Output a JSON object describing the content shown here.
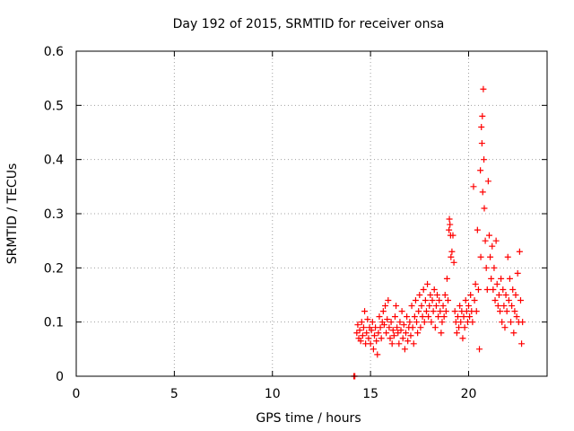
{
  "chart_data": {
    "type": "scatter",
    "title": "Day 192 of 2015, SRMTID for receiver onsa",
    "xlabel": "GPS time / hours",
    "ylabel": "SRMTID / TECUs",
    "xlim": [
      0,
      24
    ],
    "ylim": [
      0,
      0.6
    ],
    "x_ticks": [
      0,
      5,
      10,
      15,
      20
    ],
    "x_tick_labels": [
      "0",
      "5",
      "10",
      "15",
      "20"
    ],
    "y_ticks": [
      0,
      0.1,
      0.2,
      0.3,
      0.4,
      0.5,
      0.6
    ],
    "y_tick_labels": [
      "0",
      "0.1",
      "0.2",
      "0.3",
      "0.4",
      "0.5",
      "0.6"
    ],
    "grid": true,
    "marker": "plus",
    "series": [
      {
        "name": "SRMTID",
        "color": "#ff0000",
        "points": [
          [
            14.15,
            0.0
          ],
          [
            14.2,
            0.0
          ],
          [
            14.3,
            0.08
          ],
          [
            14.35,
            0.095
          ],
          [
            14.4,
            0.07
          ],
          [
            14.45,
            0.085
          ],
          [
            14.5,
            0.065
          ],
          [
            14.55,
            0.1
          ],
          [
            14.6,
            0.075
          ],
          [
            14.65,
            0.09
          ],
          [
            14.7,
            0.12
          ],
          [
            14.75,
            0.06
          ],
          [
            14.8,
            0.08
          ],
          [
            14.85,
            0.105
          ],
          [
            14.9,
            0.07
          ],
          [
            14.95,
            0.09
          ],
          [
            15.0,
            0.06
          ],
          [
            15.05,
            0.085
          ],
          [
            15.1,
            0.1
          ],
          [
            15.15,
            0.05
          ],
          [
            15.2,
            0.075
          ],
          [
            15.25,
            0.09
          ],
          [
            15.3,
            0.065
          ],
          [
            15.35,
            0.04
          ],
          [
            15.4,
            0.08
          ],
          [
            15.45,
            0.11
          ],
          [
            15.5,
            0.09
          ],
          [
            15.55,
            0.07
          ],
          [
            15.6,
            0.1
          ],
          [
            15.65,
            0.12
          ],
          [
            15.7,
            0.095
          ],
          [
            15.75,
            0.13
          ],
          [
            15.8,
            0.08
          ],
          [
            15.85,
            0.105
          ],
          [
            15.9,
            0.14
          ],
          [
            15.95,
            0.09
          ],
          [
            16.0,
            0.07
          ],
          [
            16.05,
            0.1
          ],
          [
            16.1,
            0.06
          ],
          [
            16.15,
            0.085
          ],
          [
            16.2,
            0.075
          ],
          [
            16.25,
            0.11
          ],
          [
            16.3,
            0.13
          ],
          [
            16.35,
            0.09
          ],
          [
            16.4,
            0.08
          ],
          [
            16.45,
            0.06
          ],
          [
            16.5,
            0.1
          ],
          [
            16.55,
            0.085
          ],
          [
            16.6,
            0.12
          ],
          [
            16.65,
            0.07
          ],
          [
            16.7,
            0.095
          ],
          [
            16.75,
            0.05
          ],
          [
            16.8,
            0.08
          ],
          [
            16.85,
            0.11
          ],
          [
            16.9,
            0.065
          ],
          [
            16.95,
            0.09
          ],
          [
            17.0,
            0.1
          ],
          [
            17.05,
            0.075
          ],
          [
            17.1,
            0.13
          ],
          [
            17.15,
            0.09
          ],
          [
            17.2,
            0.06
          ],
          [
            17.25,
            0.11
          ],
          [
            17.3,
            0.14
          ],
          [
            17.35,
            0.1
          ],
          [
            17.4,
            0.08
          ],
          [
            17.45,
            0.12
          ],
          [
            17.5,
            0.15
          ],
          [
            17.55,
            0.09
          ],
          [
            17.6,
            0.13
          ],
          [
            17.65,
            0.11
          ],
          [
            17.7,
            0.16
          ],
          [
            17.75,
            0.1
          ],
          [
            17.8,
            0.14
          ],
          [
            17.85,
            0.12
          ],
          [
            17.9,
            0.17
          ],
          [
            17.95,
            0.11
          ],
          [
            18.0,
            0.13
          ],
          [
            18.05,
            0.15
          ],
          [
            18.1,
            0.1
          ],
          [
            18.15,
            0.14
          ],
          [
            18.2,
            0.12
          ],
          [
            18.25,
            0.16
          ],
          [
            18.3,
            0.09
          ],
          [
            18.35,
            0.13
          ],
          [
            18.4,
            0.15
          ],
          [
            18.45,
            0.11
          ],
          [
            18.5,
            0.14
          ],
          [
            18.55,
            0.12
          ],
          [
            18.6,
            0.08
          ],
          [
            18.65,
            0.1
          ],
          [
            18.7,
            0.13
          ],
          [
            18.75,
            0.11
          ],
          [
            18.8,
            0.15
          ],
          [
            18.85,
            0.12
          ],
          [
            18.9,
            0.18
          ],
          [
            18.95,
            0.14
          ],
          [
            19.0,
            0.27
          ],
          [
            19.02,
            0.29
          ],
          [
            19.05,
            0.28
          ],
          [
            19.08,
            0.26
          ],
          [
            19.1,
            0.22
          ],
          [
            19.15,
            0.23
          ],
          [
            19.2,
            0.26
          ],
          [
            19.25,
            0.21
          ],
          [
            19.3,
            0.12
          ],
          [
            19.35,
            0.1
          ],
          [
            19.4,
            0.08
          ],
          [
            19.45,
            0.11
          ],
          [
            19.5,
            0.09
          ],
          [
            19.55,
            0.13
          ],
          [
            19.6,
            0.1
          ],
          [
            19.65,
            0.12
          ],
          [
            19.7,
            0.07
          ],
          [
            19.75,
            0.11
          ],
          [
            19.8,
            0.09
          ],
          [
            19.85,
            0.14
          ],
          [
            19.9,
            0.12
          ],
          [
            19.95,
            0.1
          ],
          [
            20.0,
            0.13
          ],
          [
            20.05,
            0.11
          ],
          [
            20.1,
            0.15
          ],
          [
            20.15,
            0.12
          ],
          [
            20.2,
            0.1
          ],
          [
            20.25,
            0.35
          ],
          [
            20.3,
            0.14
          ],
          [
            20.35,
            0.17
          ],
          [
            20.4,
            0.12
          ],
          [
            20.45,
            0.27
          ],
          [
            20.5,
            0.16
          ],
          [
            20.55,
            0.05
          ],
          [
            20.6,
            0.38
          ],
          [
            20.62,
            0.22
          ],
          [
            20.65,
            0.46
          ],
          [
            20.68,
            0.43
          ],
          [
            20.7,
            0.48
          ],
          [
            20.72,
            0.34
          ],
          [
            20.75,
            0.53
          ],
          [
            20.78,
            0.4
          ],
          [
            20.8,
            0.31
          ],
          [
            20.85,
            0.25
          ],
          [
            20.9,
            0.2
          ],
          [
            20.95,
            0.16
          ],
          [
            21.0,
            0.36
          ],
          [
            21.05,
            0.26
          ],
          [
            21.1,
            0.22
          ],
          [
            21.15,
            0.18
          ],
          [
            21.2,
            0.24
          ],
          [
            21.25,
            0.16
          ],
          [
            21.3,
            0.2
          ],
          [
            21.35,
            0.14
          ],
          [
            21.4,
            0.25
          ],
          [
            21.45,
            0.17
          ],
          [
            21.5,
            0.13
          ],
          [
            21.55,
            0.15
          ],
          [
            21.6,
            0.12
          ],
          [
            21.65,
            0.18
          ],
          [
            21.7,
            0.1
          ],
          [
            21.75,
            0.16
          ],
          [
            21.8,
            0.13
          ],
          [
            21.85,
            0.09
          ],
          [
            21.9,
            0.15
          ],
          [
            21.95,
            0.12
          ],
          [
            22.0,
            0.22
          ],
          [
            22.05,
            0.14
          ],
          [
            22.1,
            0.18
          ],
          [
            22.15,
            0.1
          ],
          [
            22.2,
            0.13
          ],
          [
            22.25,
            0.16
          ],
          [
            22.3,
            0.08
          ],
          [
            22.35,
            0.12
          ],
          [
            22.4,
            0.15
          ],
          [
            22.45,
            0.11
          ],
          [
            22.5,
            0.19
          ],
          [
            22.55,
            0.1
          ],
          [
            22.6,
            0.23
          ],
          [
            22.65,
            0.14
          ],
          [
            22.7,
            0.06
          ],
          [
            22.75,
            0.1
          ]
        ]
      }
    ]
  }
}
